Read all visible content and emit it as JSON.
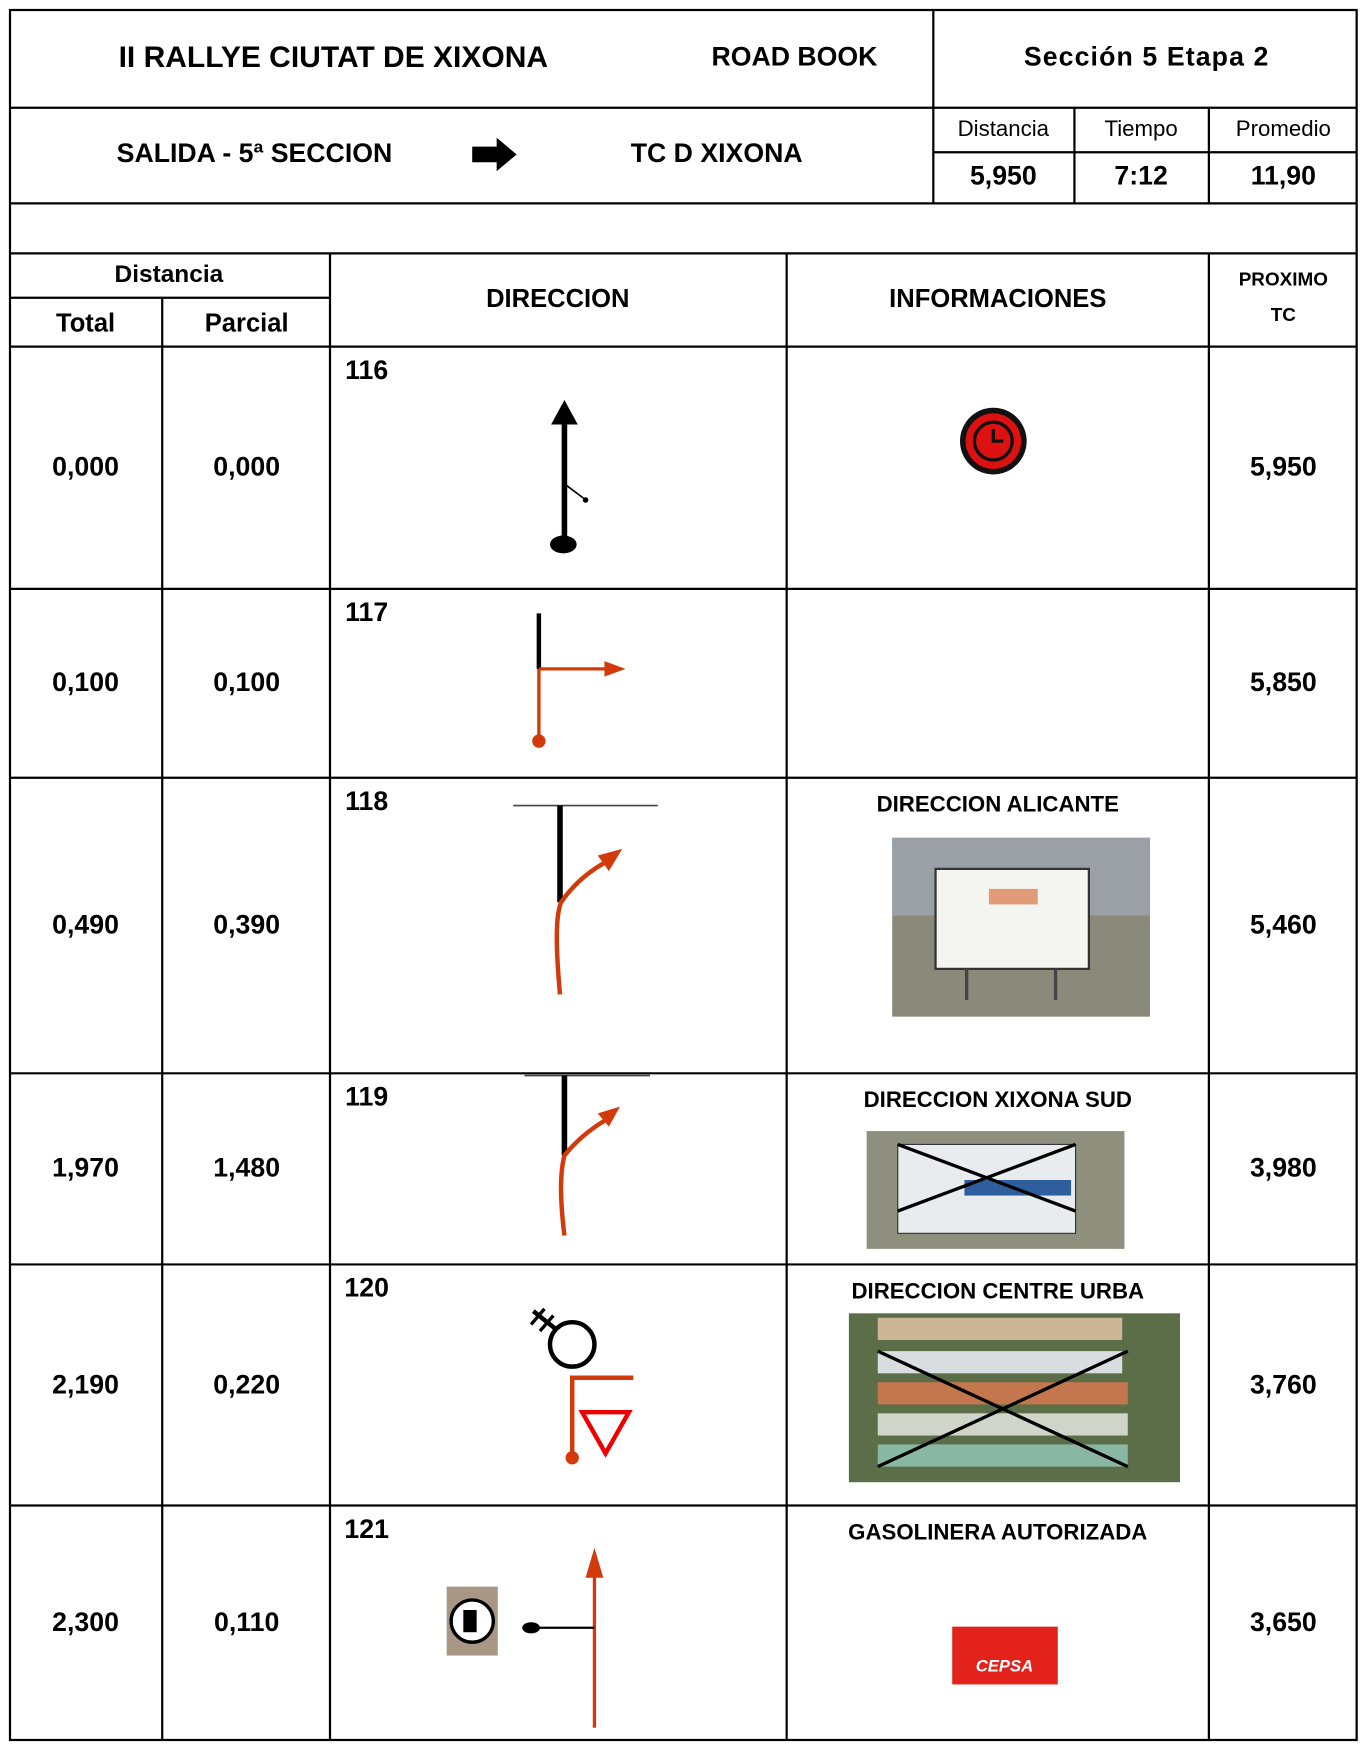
{
  "header": {
    "title": "II RALLYE CIUTAT DE XIXONA",
    "subtitle": "ROAD BOOK",
    "section": "Sección 5 Etapa 2",
    "route_from": "SALIDA - 5ª SECCION",
    "route_to": "TC D XIXONA",
    "stats": {
      "labels": [
        "Distancia",
        "Tiempo",
        "Promedio"
      ],
      "values": [
        "5,950",
        "7:12",
        "11,90"
      ]
    }
  },
  "table": {
    "group_header": "Distancia",
    "columns": [
      "Total",
      "Parcial",
      "DIRECCION",
      "INFORMACIONES",
      "PROXIMO TC"
    ],
    "rows": [
      {
        "number": "116",
        "total": "0,000",
        "parcial": "0,000",
        "proximo": "5,950"
      },
      {
        "number": "117",
        "total": "0,100",
        "parcial": "0,100",
        "proximo": "5,850"
      },
      {
        "number": "118",
        "total": "0,490",
        "parcial": "0,390",
        "info": "DIRECCION ALICANTE",
        "proximo": "5,460"
      },
      {
        "number": "119",
        "total": "1,970",
        "parcial": "1,480",
        "info": "DIRECCION XIXONA SUD",
        "proximo": "3,980"
      },
      {
        "number": "120",
        "total": "2,190",
        "parcial": "0,220",
        "info": "DIRECCION CENTRE URBA",
        "proximo": "3,760"
      },
      {
        "number": "121",
        "total": "2,300",
        "parcial": "0,110",
        "info": "GASOLINERA AUTORIZADA",
        "logo": "CEPSA",
        "proximo": "3,650"
      }
    ]
  }
}
